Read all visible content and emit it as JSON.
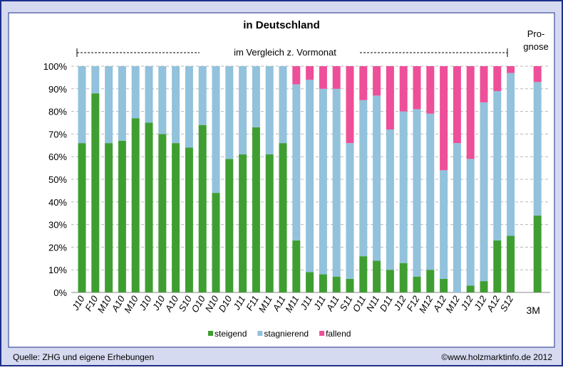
{
  "chart_data": {
    "type": "stacked_bar",
    "subtitle": "in Deutschland",
    "annotations": [
      "im Vergleich z. Vormonat",
      "Pro-",
      "gnose"
    ],
    "source": "Quelle: ZHG und eigene Erhebungen",
    "copyright": "©www.holzmarktinfo.de 2012",
    "categories": [
      "J10",
      "F10",
      "M10",
      "A10",
      "M10",
      "J10",
      "J10",
      "A10",
      "S10",
      "O10",
      "N10",
      "D10",
      "J11",
      "F11",
      "M11",
      "A11",
      "M11",
      "J11",
      "J11",
      "A11",
      "S11",
      "O11",
      "N11",
      "D11",
      "J12",
      "F12",
      "M12",
      "A12",
      "M12",
      "J12",
      "J12",
      "A12",
      "S12",
      null,
      "3M"
    ],
    "series": [
      {
        "name": "steigend",
        "color": "#3f9e32",
        "values": [
          66,
          88,
          66,
          67,
          77,
          75,
          70,
          66,
          64,
          74,
          44,
          59,
          61,
          73,
          61,
          66,
          23,
          9,
          8,
          7,
          6,
          16,
          14,
          10,
          13,
          7,
          10,
          6,
          0,
          3,
          5,
          23,
          25,
          null,
          34
        ]
      },
      {
        "name": "stagnierend",
        "color": "#92c2dc",
        "values": [
          34,
          12,
          34,
          33,
          23,
          25,
          30,
          34,
          36,
          26,
          56,
          41,
          39,
          27,
          39,
          34,
          69,
          85,
          82,
          83,
          60,
          69,
          73,
          62,
          67,
          74,
          69,
          48,
          66,
          56,
          79,
          66,
          72,
          null,
          59
        ]
      },
      {
        "name": "fallend",
        "color": "#ee4f99",
        "values": [
          0,
          0,
          0,
          0,
          0,
          0,
          0,
          0,
          0,
          0,
          0,
          0,
          0,
          0,
          0,
          0,
          8,
          6,
          10,
          10,
          34,
          15,
          13,
          28,
          20,
          19,
          21,
          46,
          34,
          41,
          16,
          11,
          3,
          null,
          7
        ]
      }
    ],
    "ylim": [
      0,
      100
    ],
    "yticks": [
      {
        "value": 0,
        "label": "0%"
      },
      {
        "value": 10,
        "label": "10%"
      },
      {
        "value": 20,
        "label": "20%"
      },
      {
        "value": 30,
        "label": "30%"
      },
      {
        "value": 40,
        "label": "40%"
      },
      {
        "value": 50,
        "label": "50%"
      },
      {
        "value": 60,
        "label": "60%"
      },
      {
        "value": 70,
        "label": "70%"
      },
      {
        "value": 80,
        "label": "80%"
      },
      {
        "value": 90,
        "label": "90%"
      },
      {
        "value": 100,
        "label": "100%"
      }
    ],
    "grid": true,
    "legend": "bottom"
  }
}
